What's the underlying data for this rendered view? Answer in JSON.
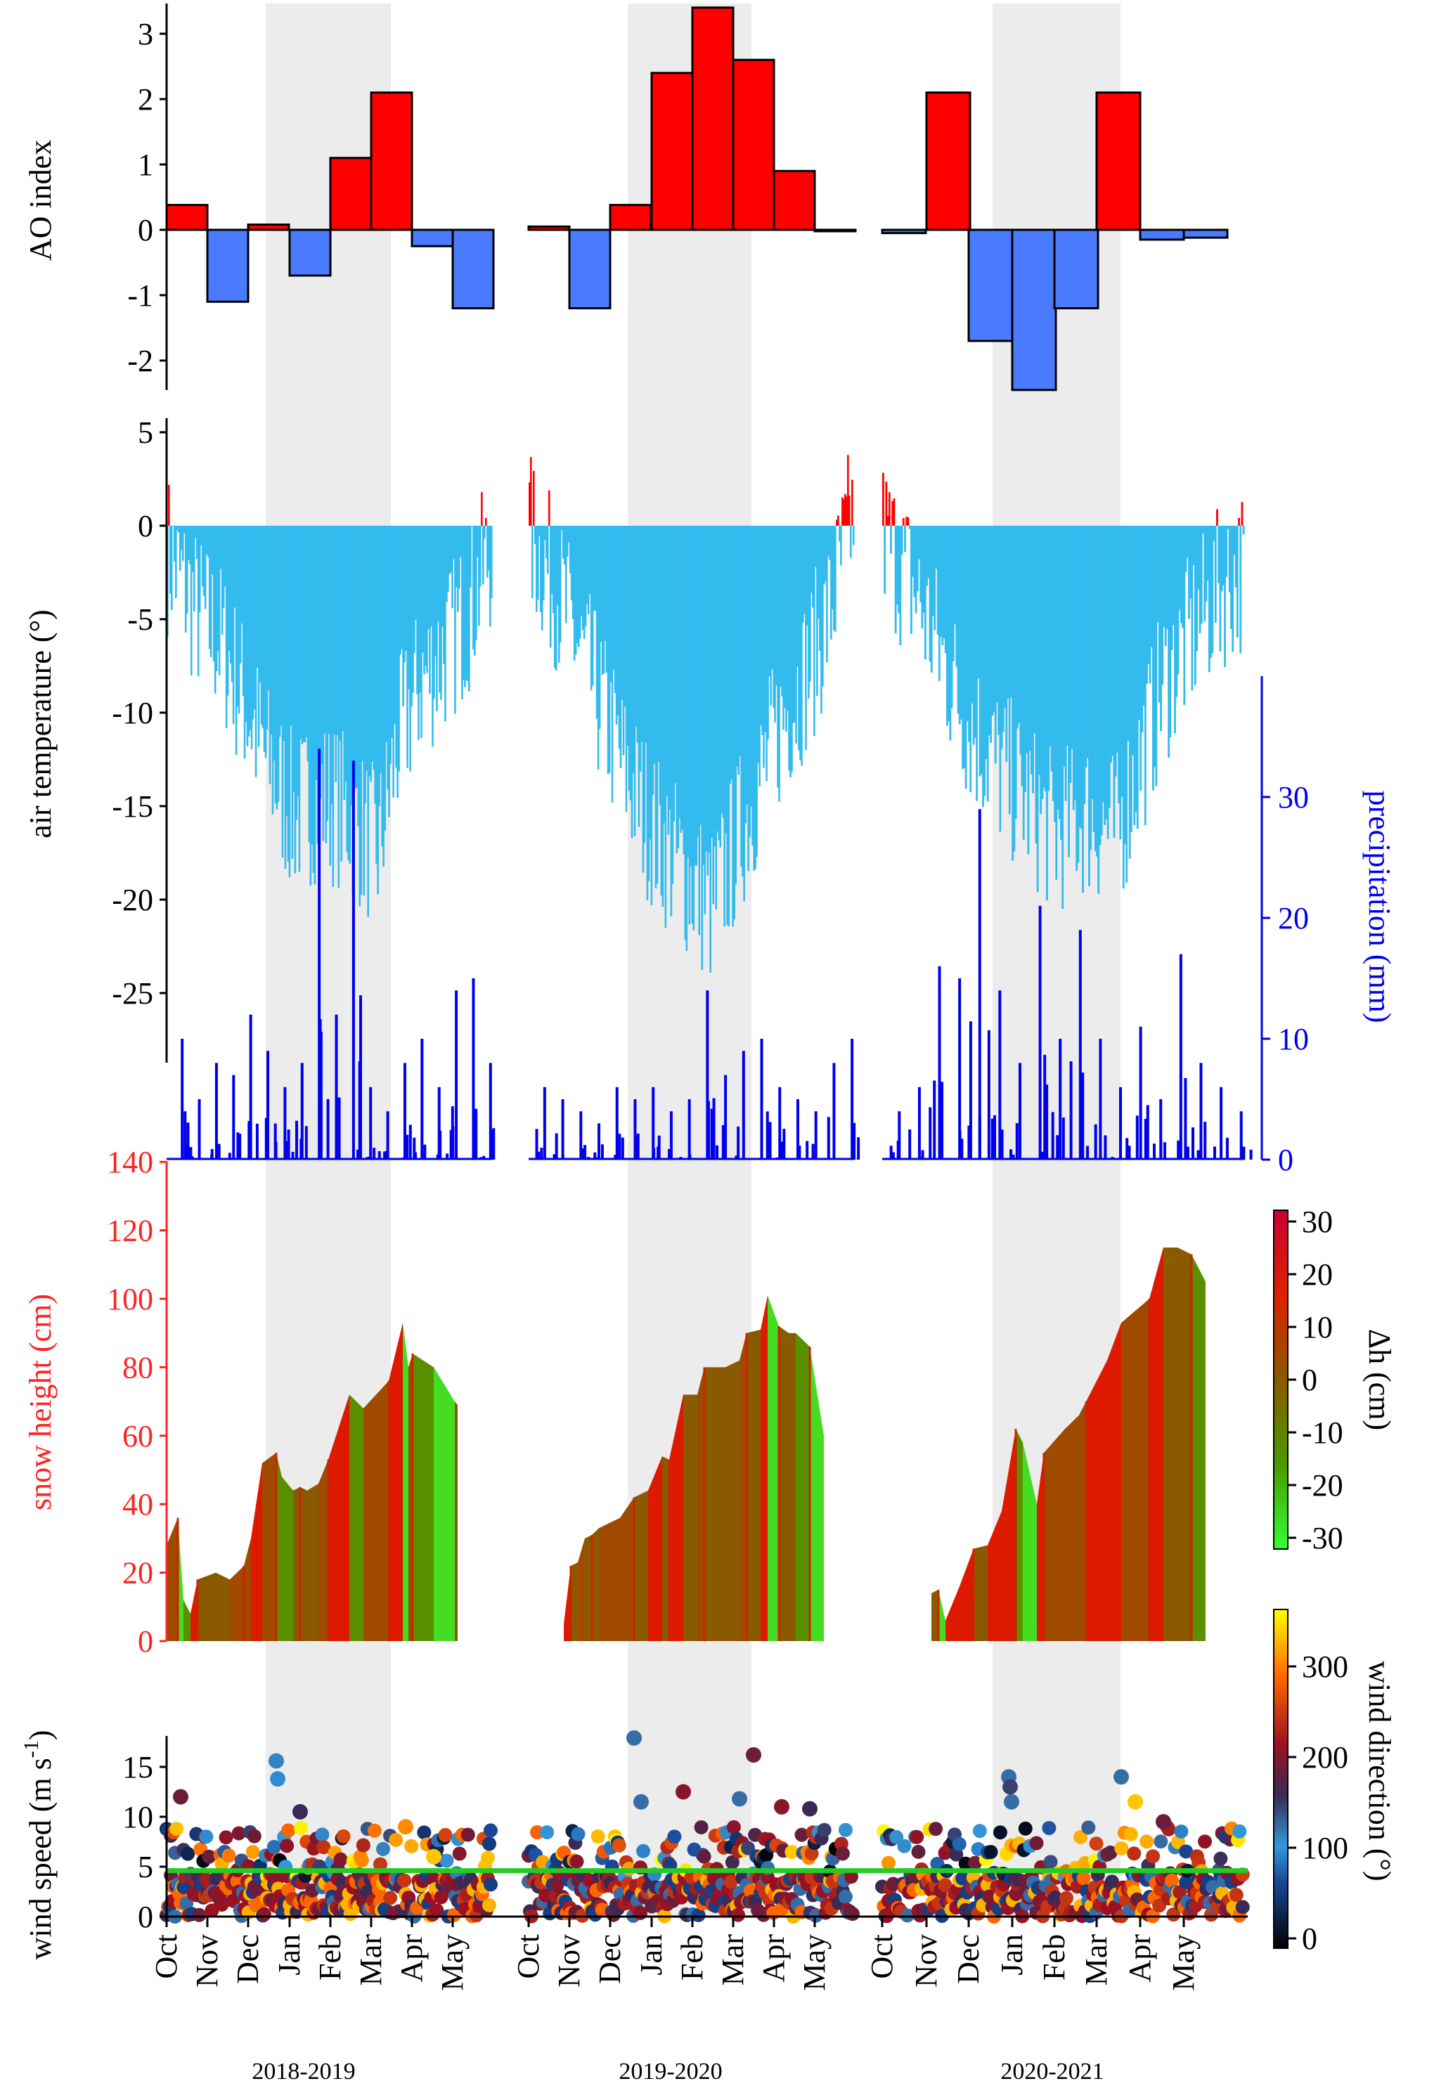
{
  "chart_data": [
    {
      "type": "bar",
      "ylabel": "AO index",
      "ylim": [
        -2.5,
        3.3
      ],
      "yticks": [
        "-2",
        "-1",
        "0",
        "1",
        "2",
        "3"
      ],
      "series": [
        {
          "season": "2018-2019",
          "months": [
            "Oct",
            "Nov",
            "Dec",
            "Jan",
            "Feb",
            "Mar",
            "Apr",
            "May"
          ],
          "values": [
            0.38,
            -1.1,
            0.08,
            -0.7,
            1.1,
            2.1,
            -0.25,
            -1.2
          ]
        },
        {
          "season": "2019-2020",
          "months": [
            "Oct",
            "Nov",
            "Dec",
            "Jan",
            "Feb",
            "Mar",
            "Apr",
            "May"
          ],
          "values": [
            0.05,
            -1.2,
            0.38,
            2.4,
            3.4,
            2.6,
            0.9,
            0.0
          ]
        },
        {
          "season": "2020-2021",
          "months": [
            "Oct",
            "Nov",
            "Dec",
            "Jan",
            "Feb",
            "Mar",
            "Apr",
            "May"
          ],
          "values": [
            -0.05,
            2.1,
            -1.7,
            -2.45,
            -1.2,
            2.1,
            -0.15,
            -0.12
          ]
        }
      ],
      "colors": {
        "positive": "#ff0000",
        "negative": "#4a7bff"
      }
    },
    {
      "type": "bar",
      "ylabel": "air temperature (°)",
      "ylim": [
        -28,
        5
      ],
      "yticks": [
        "5",
        "0",
        "-5",
        "-10",
        "-15",
        "-20",
        "-25"
      ],
      "y2label": "precipitation (mm)",
      "y2lim": [
        0,
        40
      ],
      "y2ticks": [
        "0",
        "10",
        "20",
        "30"
      ],
      "temperature_anchors": [
        {
          "season": "2018-2019",
          "points": [
            [
              0,
              -1
            ],
            [
              20,
              -4
            ],
            [
              40,
              -6
            ],
            [
              55,
              -9
            ],
            [
              70,
              -12
            ],
            [
              90,
              -15
            ],
            [
              110,
              -14
            ],
            [
              130,
              -15
            ],
            [
              150,
              -17
            ],
            [
              165,
              -11
            ],
            [
              180,
              -8
            ],
            [
              200,
              -6
            ],
            [
              215,
              -4
            ],
            [
              230,
              -1
            ]
          ]
        },
        {
          "season": "2019-2020",
          "points": [
            [
              0,
              0
            ],
            [
              20,
              -3
            ],
            [
              40,
              -7
            ],
            [
              55,
              -10
            ],
            [
              70,
              -13
            ],
            [
              90,
              -16
            ],
            [
              110,
              -18
            ],
            [
              130,
              -20
            ],
            [
              150,
              -16
            ],
            [
              165,
              -13
            ],
            [
              180,
              -10
            ],
            [
              200,
              -7
            ],
            [
              215,
              -4
            ],
            [
              230,
              1
            ]
          ]
        },
        {
          "season": "2020-2021",
          "points": [
            [
              0,
              0
            ],
            [
              20,
              -3
            ],
            [
              40,
              -7
            ],
            [
              55,
              -10
            ],
            [
              70,
              -12
            ],
            [
              90,
              -14
            ],
            [
              110,
              -16
            ],
            [
              130,
              -15
            ],
            [
              150,
              -16
            ],
            [
              165,
              -12
            ],
            [
              180,
              -8
            ],
            [
              200,
              -5
            ],
            [
              215,
              -3
            ],
            [
              230,
              -2
            ]
          ]
        }
      ],
      "precipitation_peaks": [
        {
          "season": "2018-2019",
          "values": [
            10,
            5,
            8,
            7,
            12,
            9,
            6,
            8,
            34,
            12,
            33,
            6,
            4,
            8,
            10,
            6,
            14,
            15,
            8
          ]
        },
        {
          "season": "2019-2020",
          "values": [
            6,
            5,
            4,
            3,
            6,
            5,
            6,
            4,
            5,
            14,
            7,
            9,
            10,
            6,
            5,
            4,
            8,
            10
          ]
        },
        {
          "season": "2020-2021",
          "values": [
            4,
            6,
            16,
            15,
            29,
            14,
            8,
            21,
            10,
            19,
            10,
            6,
            11,
            5,
            17,
            8,
            6,
            4
          ]
        }
      ],
      "colors": {
        "positive": "#ff0000",
        "negative": "#33bbee",
        "precipitation": "#0000ee"
      }
    },
    {
      "type": "area",
      "ylabel": "snow height (cm)",
      "ylim": [
        0,
        140
      ],
      "yticks": [
        "0",
        "20",
        "40",
        "60",
        "80",
        "100",
        "120",
        "140"
      ],
      "colorbar_label": "Δh (cm)",
      "colorbar_ticks": [
        "30",
        "20",
        "10",
        "0",
        "-10",
        "-20",
        "-30"
      ],
      "series": [
        {
          "season": "2018-2019",
          "x_days": [
            0,
            8,
            12,
            17,
            22,
            35,
            45,
            55,
            60,
            68,
            78,
            82,
            90,
            95,
            100,
            108,
            115,
            130,
            140,
            158,
            168,
            172,
            175,
            190,
            205,
            207
          ],
          "values": [
            28,
            36,
            12,
            8,
            18,
            20,
            18,
            22,
            30,
            52,
            55,
            48,
            44,
            45,
            44,
            46,
            53,
            72,
            68,
            76,
            93,
            80,
            84,
            80,
            70,
            69
          ]
        },
        {
          "season": "2019-2020",
          "x_days": [
            25,
            30,
            35,
            40,
            45,
            50,
            65,
            75,
            85,
            95,
            100,
            110,
            120,
            125,
            140,
            150,
            155,
            165,
            170,
            178,
            185,
            190,
            200,
            210
          ],
          "values": [
            5,
            22,
            23,
            30,
            31,
            33,
            36,
            42,
            44,
            54,
            53,
            72,
            72,
            80,
            80,
            82,
            90,
            91,
            101,
            92,
            90,
            90,
            86,
            60
          ]
        },
        {
          "season": "2020-2021",
          "x_days": [
            35,
            40,
            45,
            55,
            65,
            75,
            85,
            95,
            100,
            110,
            115,
            130,
            140,
            145,
            160,
            170,
            190,
            200,
            210,
            220,
            230
          ],
          "values": [
            14,
            15,
            6,
            16,
            27,
            28,
            38,
            62,
            58,
            40,
            55,
            62,
            66,
            70,
            82,
            93,
            100,
            115,
            115,
            113,
            105
          ]
        }
      ]
    },
    {
      "type": "scatter",
      "ylabel": "wind speed (m s",
      "ylabel_sup": "-1",
      "ylabel_end": ")",
      "ylim": [
        0,
        18
      ],
      "yticks": [
        "0",
        "5",
        "10",
        "15"
      ],
      "threshold": 4.6,
      "colorbar_label": "wind direction (°)",
      "colorbar_ticks": [
        "0",
        "100",
        "200",
        "300"
      ],
      "highlight_points": [
        {
          "season": "2018-2019",
          "points": [
            [
              78,
              15.6,
              110
            ],
            [
              79,
              13.8,
              95
            ],
            [
              95,
              10.5,
              150
            ],
            [
              10,
              12,
              180
            ],
            [
              170,
              9,
              300
            ],
            [
              190,
              6,
              330
            ]
          ]
        },
        {
          "season": "2019-2020",
          "points": [
            [
              75,
              17.9,
              120
            ],
            [
              80,
              11.5,
              120
            ],
            [
              110,
              12.5,
              200
            ],
            [
              150,
              11.8,
              120
            ],
            [
              160,
              16.2,
              180
            ],
            [
              180,
              11,
              200
            ],
            [
              200,
              10.8,
              150
            ]
          ]
        },
        {
          "season": "2020-2021",
          "points": [
            [
              90,
              14,
              120
            ],
            [
              91,
              13,
              140
            ],
            [
              92,
              11.5,
              120
            ],
            [
              170,
              14,
              120
            ],
            [
              180,
              11.5,
              330
            ],
            [
              200,
              9.5,
              180
            ]
          ]
        }
      ]
    }
  ],
  "x_axis": {
    "month_labels": [
      "Oct",
      "Nov",
      "Dec",
      "Jan",
      "Feb",
      "Mar",
      "Apr",
      "May"
    ],
    "season_labels": [
      "2018-2019",
      "2019-2020",
      "2020-2021"
    ]
  }
}
